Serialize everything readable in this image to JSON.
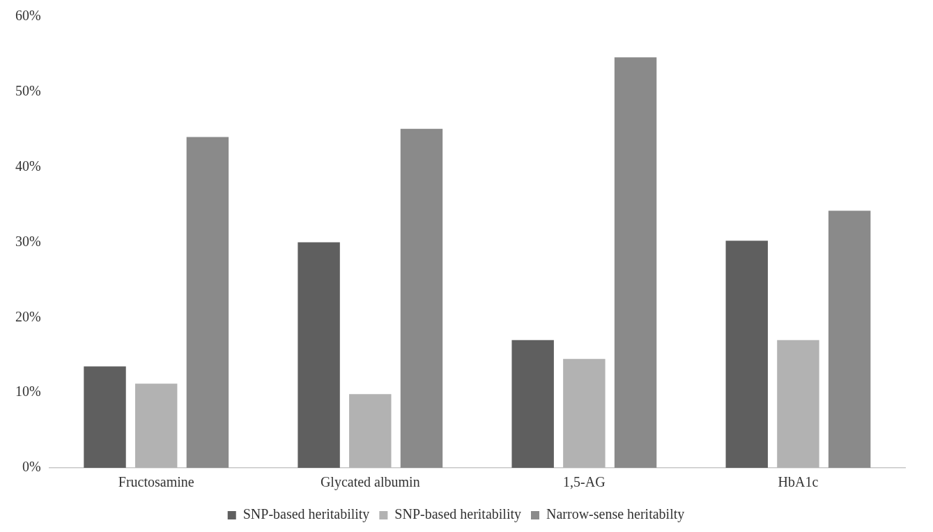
{
  "chart_data": {
    "type": "bar",
    "categories": [
      "Fructosamine",
      "Glycated albumin",
      "1,5-AG",
      "HbA1c"
    ],
    "series": [
      {
        "name": "SNP-based heritability",
        "color": "#5f5f5f",
        "values": [
          13.5,
          30.0,
          17.0,
          30.2
        ]
      },
      {
        "name": "SNP-based heritability",
        "color": "#b2b2b2",
        "values": [
          11.2,
          9.8,
          14.5,
          17.0
        ]
      },
      {
        "name": "Narrow-sense heritabilty",
        "color": "#8a8a8a",
        "values": [
          44.0,
          45.1,
          54.6,
          34.2
        ]
      }
    ],
    "ylim": [
      0,
      60
    ],
    "yticks": [
      {
        "value": 0,
        "label": "0%"
      },
      {
        "value": 10,
        "label": "10%"
      },
      {
        "value": 20,
        "label": "20%"
      },
      {
        "value": 30,
        "label": "30%"
      },
      {
        "value": 40,
        "label": "40%"
      },
      {
        "value": 50,
        "label": "50%"
      },
      {
        "value": 60,
        "label": "60%"
      }
    ],
    "grid": false,
    "legend": "bottom"
  }
}
